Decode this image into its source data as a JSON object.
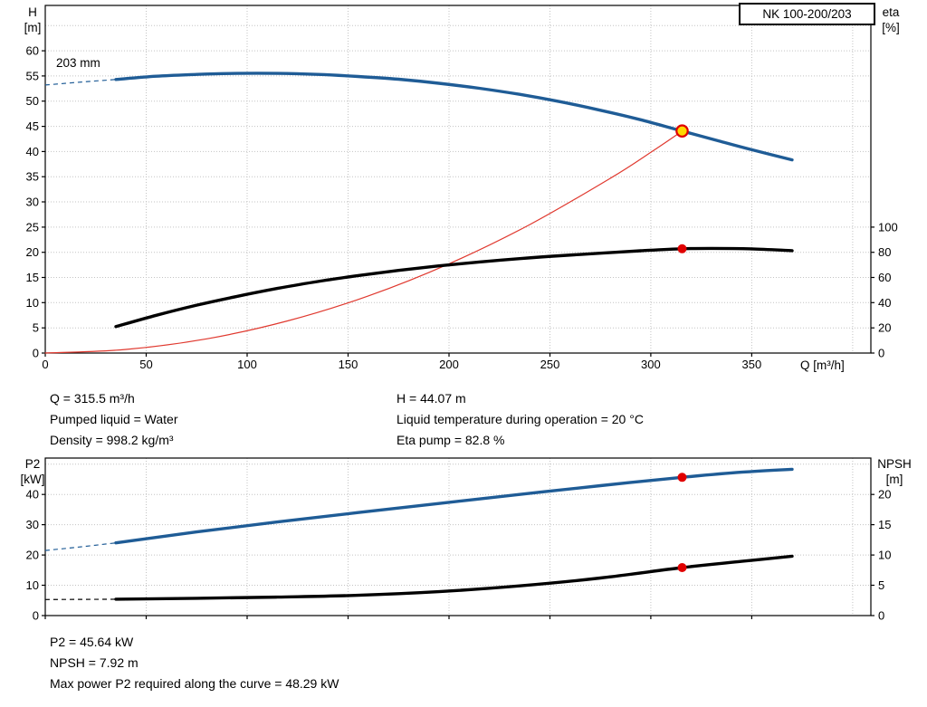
{
  "title_box": {
    "label": "NK 100-200/203"
  },
  "labels": {
    "impeller_diameter": "203 mm",
    "q_axis": "Q [m³/h]"
  },
  "axis_headers": {
    "h": [
      "H",
      "[m]"
    ],
    "eta": [
      "eta",
      "[%]"
    ],
    "p2": [
      "P2",
      "[kW]"
    ],
    "npsh": [
      "NPSH",
      "[m]"
    ]
  },
  "info_top": {
    "left": [
      "Q = 315.5 m³/h",
      "Pumped liquid = Water",
      "Density = 998.2 kg/m³"
    ],
    "right": [
      "H = 44.07 m",
      "Liquid temperature during operation = 20 °C",
      "Eta pump = 82.8 %"
    ]
  },
  "info_bottom": [
    "P2 = 45.64 kW",
    "NPSH = 7.92 m",
    "Max power P2 required along the curve = 48.29 kW"
  ],
  "colors": {
    "curve_blue": "#1f5c96",
    "curve_black": "#000000",
    "system_red": "#e0392f",
    "marker_red": "#e00000",
    "marker_yellow": "#ffd800",
    "grid": "#c3c3c3"
  },
  "chart_data": [
    {
      "type": "line",
      "name": "qh-eta-chart",
      "title": "NK 100-200/203",
      "duty_point": {
        "q": 315.5,
        "h": 44.07,
        "eta": 82.8
      },
      "x": {
        "label": "Q [m³/h]",
        "min": 0,
        "max": 409,
        "ticks": [
          0,
          50,
          100,
          150,
          200,
          250,
          300,
          350
        ],
        "grid": [
          50,
          100,
          150,
          200,
          250,
          300,
          350,
          400
        ],
        "show_tick_labels": true
      },
      "y_left": {
        "label": "H [m]",
        "min": 0,
        "max": 69,
        "ticks": [
          0,
          5,
          10,
          15,
          20,
          25,
          30,
          35,
          40,
          45,
          50,
          55,
          60
        ],
        "grid": [
          5,
          10,
          15,
          20,
          25,
          30,
          35,
          40,
          45,
          50,
          55,
          60,
          65
        ]
      },
      "y_right": {
        "label": "eta [%]",
        "min": 0,
        "max": 276,
        "ticks": [
          0,
          20,
          40,
          60,
          80,
          100
        ]
      },
      "series": [
        {
          "name": "head-curve",
          "axis": "left",
          "color": "#1f5c96",
          "width": 3.4,
          "dashed_lead": [
            [
              0,
              53.2
            ],
            [
              18,
              53.8
            ],
            [
              35,
              54.3
            ]
          ],
          "points": [
            [
              35,
              54.3
            ],
            [
              55,
              54.95
            ],
            [
              75,
              55.3
            ],
            [
              95,
              55.5
            ],
            [
              115,
              55.5
            ],
            [
              135,
              55.3
            ],
            [
              155,
              54.9
            ],
            [
              175,
              54.35
            ],
            [
              195,
              53.55
            ],
            [
              215,
              52.55
            ],
            [
              235,
              51.35
            ],
            [
              255,
              49.9
            ],
            [
              275,
              48.2
            ],
            [
              295,
              46.3
            ],
            [
              315.5,
              44.07
            ],
            [
              335,
              41.95
            ],
            [
              350,
              40.35
            ],
            [
              370,
              38.35
            ]
          ]
        },
        {
          "name": "efficiency-curve",
          "axis": "right",
          "color": "#000000",
          "width": 3.4,
          "points": [
            [
              35,
              21
            ],
            [
              55,
              30
            ],
            [
              75,
              38
            ],
            [
              95,
              45
            ],
            [
              115,
              51.3
            ],
            [
              135,
              56.8
            ],
            [
              155,
              61.5
            ],
            [
              175,
              65.6
            ],
            [
              195,
              69.2
            ],
            [
              215,
              72.3
            ],
            [
              235,
              75
            ],
            [
              255,
              77.3
            ],
            [
              275,
              79.3
            ],
            [
              295,
              81.2
            ],
            [
              315.5,
              82.8
            ],
            [
              330,
              83.1
            ],
            [
              350,
              82.7
            ],
            [
              370,
              81.3
            ]
          ]
        },
        {
          "name": "system-curve",
          "axis": "left",
          "color": "#e0392f",
          "width": 1.2,
          "points": [
            [
              0,
              0
            ],
            [
              40,
              0.71
            ],
            [
              80,
              2.83
            ],
            [
              120,
              6.37
            ],
            [
              160,
              11.33
            ],
            [
              200,
              17.71
            ],
            [
              240,
              25.5
            ],
            [
              280,
              34.71
            ],
            [
              300,
              39.85
            ],
            [
              315.5,
              44.07
            ]
          ]
        }
      ],
      "markers": [
        {
          "q": 315.5,
          "v": 44.07,
          "axis": "left",
          "type": "duty"
        },
        {
          "q": 315.5,
          "v": 82.8,
          "axis": "right",
          "type": "dot"
        }
      ]
    },
    {
      "type": "line",
      "name": "p2-npsh-chart",
      "title": "P2 / NPSH",
      "duty_point": {
        "q": 315.5,
        "p2_kw": 45.64,
        "npsh_m": 7.92,
        "p2_max_kw": 48.29
      },
      "x": {
        "label": "Q [m³/h]",
        "min": 0,
        "max": 409,
        "ticks": [
          0,
          50,
          100,
          150,
          200,
          250,
          300,
          350
        ],
        "grid": [
          50,
          100,
          150,
          200,
          250,
          300,
          350,
          400
        ],
        "show_tick_labels": false
      },
      "y_left": {
        "label": "P2 [kW]",
        "min": 0,
        "max": 52,
        "ticks": [
          0,
          10,
          20,
          30,
          40
        ],
        "grid": [
          10,
          20,
          30,
          40,
          50
        ]
      },
      "y_right": {
        "label": "NPSH [m]",
        "min": 0,
        "max": 26,
        "ticks": [
          0,
          5,
          10,
          15,
          20
        ]
      },
      "series": [
        {
          "name": "p2-curve",
          "axis": "left",
          "color": "#1f5c96",
          "width": 3.4,
          "dashed_lead": [
            [
              0,
              21.5
            ],
            [
              18,
              22.7
            ],
            [
              35,
              24
            ]
          ],
          "points": [
            [
              35,
              24
            ],
            [
              75,
              27.6
            ],
            [
              115,
              30.9
            ],
            [
              155,
              34
            ],
            [
              195,
              37
            ],
            [
              235,
              40
            ],
            [
              275,
              42.9
            ],
            [
              315.5,
              45.64
            ],
            [
              345,
              47.35
            ],
            [
              370,
              48.29
            ]
          ]
        },
        {
          "name": "npsh-curve",
          "axis": "right",
          "color": "#000000",
          "width": 3.4,
          "dashed_lead": [
            [
              0,
              2.65
            ],
            [
              18,
              2.67
            ],
            [
              35,
              2.7
            ]
          ],
          "points": [
            [
              35,
              2.7
            ],
            [
              75,
              2.85
            ],
            [
              115,
              3.05
            ],
            [
              155,
              3.35
            ],
            [
              195,
              3.95
            ],
            [
              235,
              4.9
            ],
            [
              275,
              6.2
            ],
            [
              315.5,
              7.92
            ],
            [
              345,
              8.95
            ],
            [
              370,
              9.8
            ]
          ]
        }
      ],
      "markers": [
        {
          "q": 315.5,
          "v": 45.64,
          "axis": "left",
          "type": "dot"
        },
        {
          "q": 315.5,
          "v": 7.92,
          "axis": "right",
          "type": "dot"
        }
      ]
    }
  ]
}
